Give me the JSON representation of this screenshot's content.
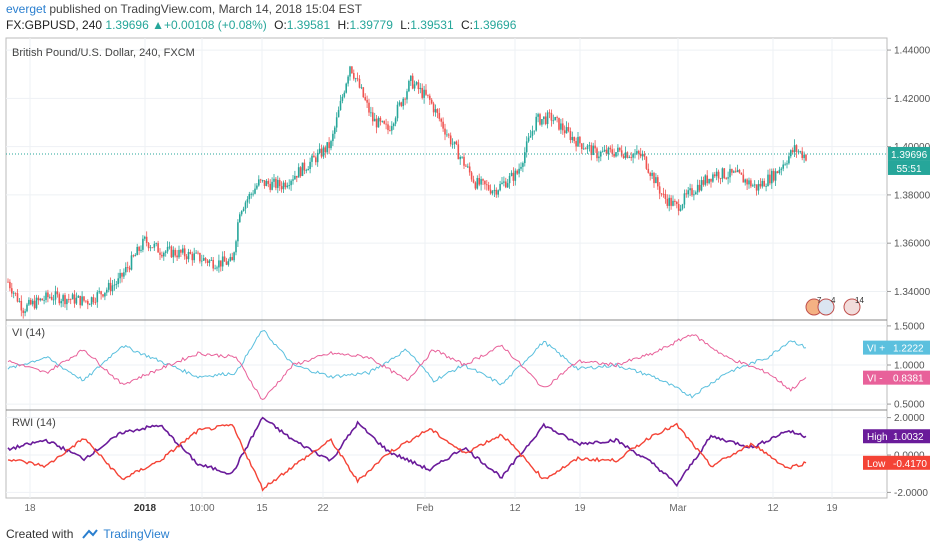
{
  "header": {
    "user": "everget",
    "published": "published on TradingView.com, March 14, 2018 15:04 EST",
    "symbol": "FX:GBPUSD, 240",
    "last": "1.39696",
    "change": "+0.00108 (+0.08%)",
    "open_label": "O:",
    "open": "1.39581",
    "high_label": "H:",
    "high": "1.39779",
    "low_label": "L:",
    "low": "1.39531",
    "close_label": "C:",
    "close": "1.39696"
  },
  "footer": {
    "created_with": "Created with",
    "brand": "TradingView"
  },
  "colors": {
    "up": "#26a69a",
    "down": "#ef5350",
    "vi_plus": "#5bc0de",
    "vi_minus": "#e8619a",
    "rwi_high": "#6a1b9a",
    "rwi_low": "#f44336"
  },
  "chart_data": [
    {
      "type": "candlestick",
      "title": "British Pound/U.S. Dollar, 240, FXCM",
      "ylim": [
        1.329,
        1.445
      ],
      "y_ticks": [
        "1.44000",
        "1.42000",
        "1.40000",
        "1.38000",
        "1.36000",
        "1.34000"
      ],
      "last_price_label": "1.39696",
      "countdown_label": "55:51",
      "event_badges": [
        "7",
        "4",
        "14"
      ],
      "x_ticks": [
        "18",
        "2018",
        "10:00",
        "15",
        "22",
        "Feb",
        "12",
        "19",
        "Mar",
        "12",
        "19"
      ],
      "trend_points": [
        [
          0,
          1.344
        ],
        [
          8,
          1.333
        ],
        [
          22,
          1.338
        ],
        [
          42,
          1.336
        ],
        [
          58,
          1.344
        ],
        [
          72,
          1.361
        ],
        [
          80,
          1.357
        ],
        [
          96,
          1.355
        ],
        [
          108,
          1.352
        ],
        [
          118,
          1.352
        ],
        [
          122,
          1.374
        ],
        [
          132,
          1.385
        ],
        [
          144,
          1.384
        ],
        [
          160,
          1.394
        ],
        [
          170,
          1.401
        ],
        [
          180,
          1.434
        ],
        [
          192,
          1.411
        ],
        [
          200,
          1.407
        ],
        [
          212,
          1.427
        ],
        [
          222,
          1.419
        ],
        [
          232,
          1.404
        ],
        [
          246,
          1.385
        ],
        [
          256,
          1.382
        ],
        [
          268,
          1.389
        ],
        [
          278,
          1.411
        ],
        [
          286,
          1.412
        ],
        [
          298,
          1.403
        ],
        [
          310,
          1.397
        ],
        [
          322,
          1.398
        ],
        [
          334,
          1.396
        ],
        [
          345,
          1.379
        ],
        [
          352,
          1.375
        ],
        [
          362,
          1.383
        ],
        [
          372,
          1.389
        ],
        [
          384,
          1.388
        ],
        [
          394,
          1.383
        ],
        [
          404,
          1.389
        ],
        [
          414,
          1.399
        ],
        [
          420,
          1.396
        ]
      ]
    },
    {
      "type": "line",
      "title": "VI (14)",
      "ylim": [
        0.45,
        1.55
      ],
      "y_ticks": [
        "1.5000",
        "1.0000",
        "0.5000"
      ],
      "series": [
        {
          "name": "VI +",
          "last_label": "1.2222",
          "trend_points": [
            [
              0,
              0.95
            ],
            [
              20,
              1.1
            ],
            [
              40,
              0.8
            ],
            [
              60,
              1.25
            ],
            [
              80,
              1.05
            ],
            [
              100,
              0.85
            ],
            [
              120,
              0.9
            ],
            [
              134,
              1.45
            ],
            [
              150,
              1.0
            ],
            [
              170,
              0.85
            ],
            [
              190,
              0.9
            ],
            [
              210,
              1.2
            ],
            [
              224,
              0.8
            ],
            [
              240,
              1.0
            ],
            [
              260,
              0.75
            ],
            [
              282,
              1.3
            ],
            [
              300,
              0.95
            ],
            [
              320,
              1.0
            ],
            [
              340,
              0.85
            ],
            [
              360,
              0.6
            ],
            [
              378,
              0.9
            ],
            [
              400,
              1.1
            ],
            [
              412,
              1.32
            ],
            [
              420,
              1.22
            ]
          ]
        },
        {
          "name": "VI -",
          "last_label": "0.8381",
          "trend_points": [
            [
              0,
              1.05
            ],
            [
              20,
              0.9
            ],
            [
              40,
              1.2
            ],
            [
              60,
              0.75
            ],
            [
              80,
              0.95
            ],
            [
              100,
              1.15
            ],
            [
              120,
              1.1
            ],
            [
              134,
              0.55
            ],
            [
              150,
              1.0
            ],
            [
              170,
              1.15
            ],
            [
              190,
              1.1
            ],
            [
              210,
              0.8
            ],
            [
              224,
              1.2
            ],
            [
              240,
              1.0
            ],
            [
              260,
              1.25
            ],
            [
              282,
              0.7
            ],
            [
              300,
              1.05
            ],
            [
              320,
              1.0
            ],
            [
              340,
              1.15
            ],
            [
              360,
              1.4
            ],
            [
              378,
              1.1
            ],
            [
              400,
              0.9
            ],
            [
              412,
              0.68
            ],
            [
              420,
              0.84
            ]
          ]
        }
      ]
    },
    {
      "type": "line",
      "title": "RWI (14)",
      "ylim": [
        -2.3,
        2.3
      ],
      "y_ticks": [
        "2.0000",
        "0.0000",
        "-2.0000"
      ],
      "series": [
        {
          "name": "High",
          "last_label": "1.0032",
          "trend_points": [
            [
              0,
              0.3
            ],
            [
              20,
              0.8
            ],
            [
              40,
              -0.2
            ],
            [
              60,
              1.2
            ],
            [
              80,
              1.6
            ],
            [
              100,
              -0.5
            ],
            [
              118,
              -1.0
            ],
            [
              134,
              2.0
            ],
            [
              150,
              0.8
            ],
            [
              170,
              -0.3
            ],
            [
              184,
              1.7
            ],
            [
              200,
              0.2
            ],
            [
              222,
              -0.8
            ],
            [
              240,
              0.4
            ],
            [
              260,
              -1.2
            ],
            [
              282,
              1.6
            ],
            [
              300,
              0.6
            ],
            [
              320,
              0.8
            ],
            [
              340,
              -0.5
            ],
            [
              352,
              -1.6
            ],
            [
              370,
              1.0
            ],
            [
              392,
              0.4
            ],
            [
              410,
              1.3
            ],
            [
              420,
              1.0
            ]
          ]
        },
        {
          "name": "Low",
          "last_label": "-0.4170",
          "trend_points": [
            [
              0,
              -0.2
            ],
            [
              20,
              -0.6
            ],
            [
              40,
              0.9
            ],
            [
              60,
              -1.3
            ],
            [
              80,
              -0.3
            ],
            [
              100,
              1.3
            ],
            [
              118,
              1.6
            ],
            [
              134,
              -1.8
            ],
            [
              150,
              -0.6
            ],
            [
              170,
              0.8
            ],
            [
              184,
              -1.4
            ],
            [
              200,
              0.1
            ],
            [
              222,
              1.4
            ],
            [
              240,
              0.1
            ],
            [
              260,
              1.1
            ],
            [
              282,
              -1.3
            ],
            [
              300,
              -0.2
            ],
            [
              320,
              -0.3
            ],
            [
              340,
              1.1
            ],
            [
              352,
              1.6
            ],
            [
              370,
              -0.6
            ],
            [
              392,
              0.6
            ],
            [
              410,
              -0.7
            ],
            [
              420,
              -0.42
            ]
          ]
        }
      ]
    }
  ]
}
